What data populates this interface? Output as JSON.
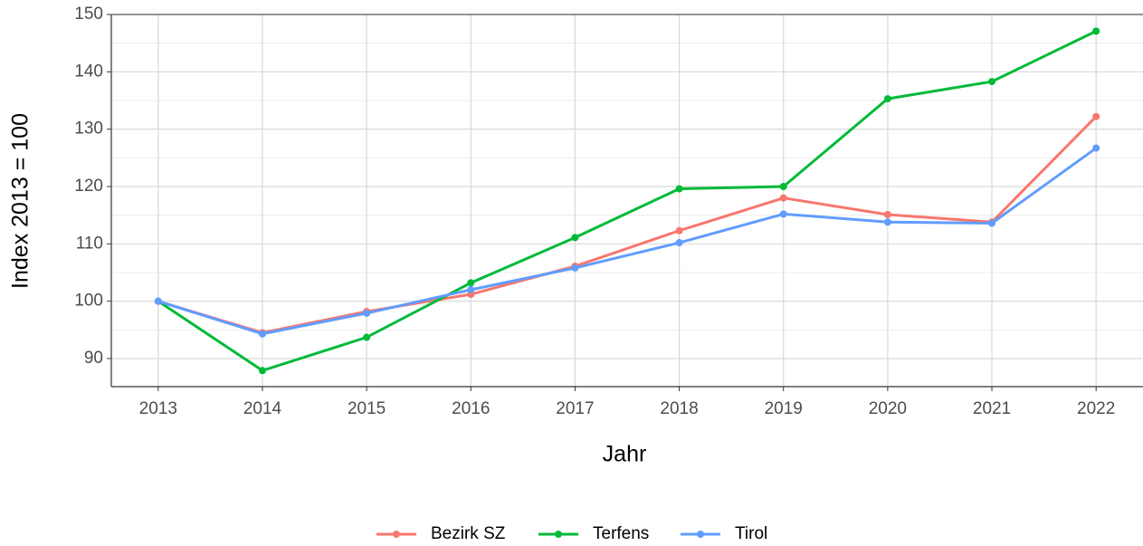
{
  "chart_data": {
    "type": "line",
    "x": [
      2013,
      2014,
      2015,
      2016,
      2017,
      2018,
      2019,
      2020,
      2021,
      2022
    ],
    "series": [
      {
        "name": "Bezirk SZ",
        "color": "#f8766d",
        "values": [
          100,
          94.5,
          98.2,
          101.2,
          106.1,
          112.3,
          118.0,
          115.1,
          113.8,
          132.2
        ]
      },
      {
        "name": "Terfens",
        "color": "#00ba38",
        "values": [
          100,
          87.9,
          93.7,
          103.2,
          111.1,
          119.6,
          120.0,
          135.3,
          138.3,
          147.1
        ]
      },
      {
        "name": "Tirol",
        "color": "#619cff",
        "values": [
          100,
          94.3,
          97.9,
          102.0,
          105.8,
          110.2,
          115.2,
          113.8,
          113.6,
          126.7
        ]
      }
    ],
    "xlabel": "Jahr",
    "ylabel": "Index  2013  = 100",
    "xlim": [
      2012.55,
      2022.45
    ],
    "xticks": [
      2013,
      2014,
      2015,
      2016,
      2017,
      2018,
      2019,
      2020,
      2021,
      2022
    ],
    "ylim": [
      85.1,
      150
    ],
    "yticks": [
      90,
      100,
      110,
      120,
      130,
      140,
      150
    ],
    "grid": true,
    "legend": "bottom"
  }
}
